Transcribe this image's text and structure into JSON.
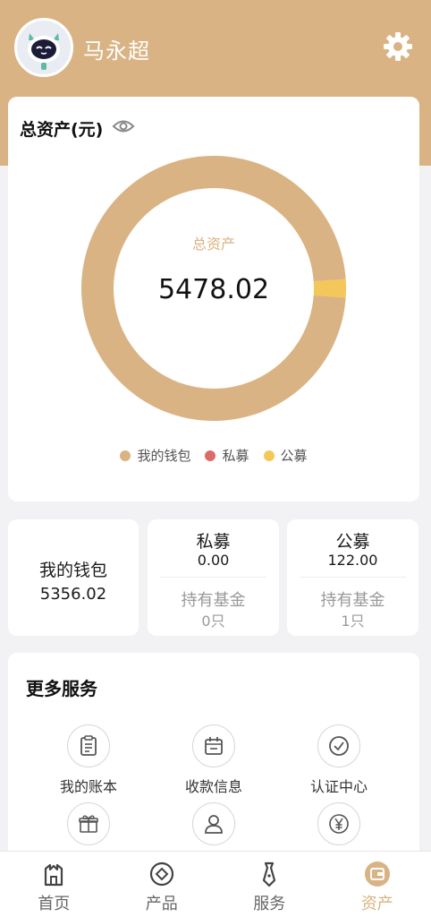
{
  "user": {
    "name": "马永超"
  },
  "assets": {
    "title": "总资产(元)",
    "center_label": "总资产",
    "total": "5478.02"
  },
  "chart_data": {
    "type": "pie",
    "title": "",
    "categories": [
      "我的钱包",
      "私募",
      "公募"
    ],
    "values": [
      5356.02,
      0.0,
      122.0
    ],
    "colors": [
      "#d9b383",
      "#db6b6b",
      "#f4c75a"
    ],
    "legend_position": "bottom"
  },
  "wallet": {
    "label": "我的钱包",
    "value": "5356.02"
  },
  "funds": [
    {
      "name": "私募",
      "value": "0.00",
      "sub_label": "持有基金",
      "count": "0只"
    },
    {
      "name": "公募",
      "value": "122.00",
      "sub_label": "持有基金",
      "count": "1只"
    }
  ],
  "services": {
    "title": "更多服务",
    "items": [
      {
        "label": "我的账本",
        "icon": "clipboard-icon"
      },
      {
        "label": "收款信息",
        "icon": "calendar-icon"
      },
      {
        "label": "认证中心",
        "icon": "check-circle-icon"
      },
      {
        "label": "",
        "icon": "gift-icon"
      },
      {
        "label": "",
        "icon": "user-icon"
      },
      {
        "label": "",
        "icon": "yuan-icon"
      }
    ]
  },
  "tabbar": {
    "items": [
      {
        "label": "首页",
        "icon": "home-icon"
      },
      {
        "label": "产品",
        "icon": "product-icon"
      },
      {
        "label": "服务",
        "icon": "tie-icon"
      },
      {
        "label": "资产",
        "icon": "wallet-icon"
      }
    ],
    "active_index": 3
  },
  "colors": {
    "brand": "#d9b383",
    "private": "#db6b6b",
    "public": "#f4c75a"
  }
}
